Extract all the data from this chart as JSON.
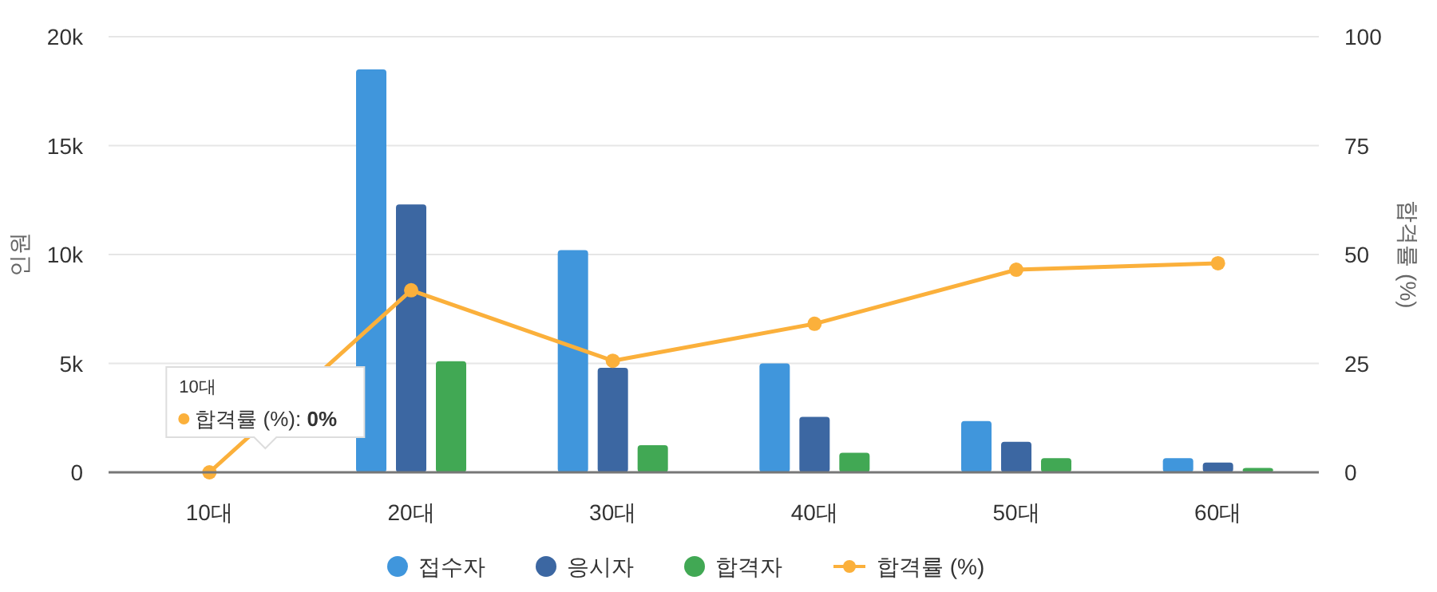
{
  "chart_data": {
    "type": "bar",
    "categories": [
      "10대",
      "20대",
      "30대",
      "40대",
      "50대",
      "60대"
    ],
    "series": [
      {
        "name": "접수자",
        "color": "#4096dc",
        "values": [
          0,
          18500,
          10200,
          5000,
          2350,
          650
        ]
      },
      {
        "name": "응시자",
        "color": "#3c67a2",
        "values": [
          0,
          12300,
          4800,
          2550,
          1400,
          450
        ]
      },
      {
        "name": "합격자",
        "color": "#41a854",
        "values": [
          0,
          5100,
          1250,
          900,
          650,
          200
        ]
      },
      {
        "name": "합격률 (%)",
        "type": "line",
        "axis": "y2",
        "color": "#fbb03b",
        "marker": "circle",
        "values": [
          0,
          41.8,
          25.6,
          34.1,
          46.5,
          48
        ]
      }
    ],
    "ylabel": "인원",
    "y2label": "합격률 (%)",
    "ylim": [
      0,
      20000
    ],
    "yticks": [
      {
        "value": 0,
        "label": "0"
      },
      {
        "value": 5000,
        "label": "5k"
      },
      {
        "value": 10000,
        "label": "10k"
      },
      {
        "value": 15000,
        "label": "15k"
      },
      {
        "value": 20000,
        "label": "20k"
      }
    ],
    "y2lim": [
      0,
      100
    ],
    "y2ticks": [
      0,
      25,
      50,
      75,
      100
    ],
    "grid": "y",
    "legend": "bottom",
    "annotations": [
      "10대",
      "합격률 (%): **0%**"
    ]
  }
}
